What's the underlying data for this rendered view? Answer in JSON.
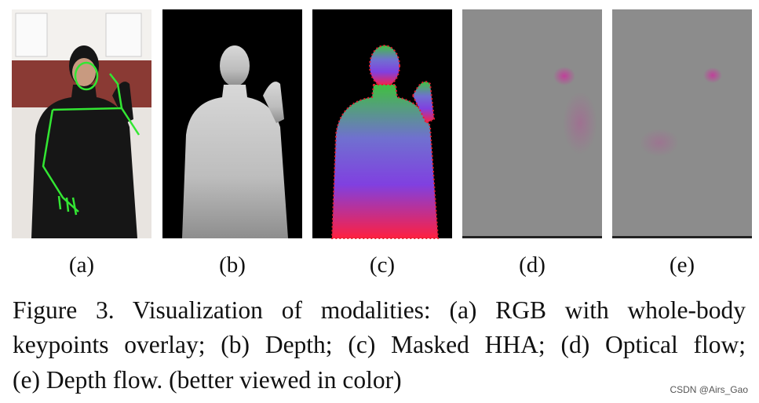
{
  "panels": [
    {
      "label": "(a)"
    },
    {
      "label": "(b)"
    },
    {
      "label": "(c)"
    },
    {
      "label": "(d)"
    },
    {
      "label": "(e)"
    }
  ],
  "caption": {
    "lines": [
      "Figure 3. Visualization of modalities: (a) RGB with whole-body",
      "keypoints overlay; (b) Depth; (c) Masked HHA; (d) Optical flow;",
      "(e) Depth flow. (better viewed in color)"
    ]
  },
  "watermark": "CSDN @Airs_Gao"
}
